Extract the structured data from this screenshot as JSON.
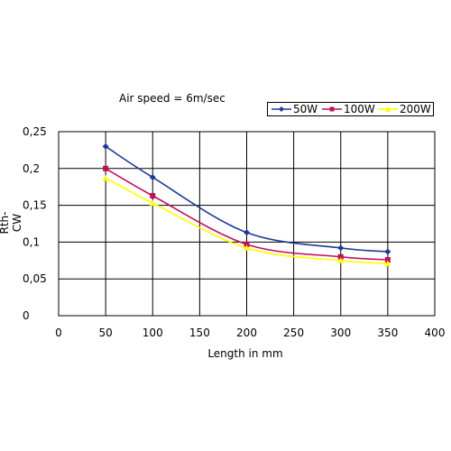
{
  "chart_data": {
    "type": "line",
    "title": "Air speed = 6m/sec",
    "xlabel": "Length in mm",
    "ylabel": "Rth-CW",
    "xlim": [
      0,
      400
    ],
    "ylim": [
      0,
      0.25
    ],
    "x_ticks": [
      "0",
      "50",
      "100",
      "150",
      "200",
      "250",
      "300",
      "350",
      "400"
    ],
    "y_ticks": [
      "0",
      "0,05",
      "0,1",
      "0,15",
      "0,2",
      "0,25"
    ],
    "grid": true,
    "legend_position": "top-right",
    "series": [
      {
        "name": "50W",
        "color": "#1f3a93",
        "marker": "diamond",
        "x": [
          50,
          100,
          200,
          300,
          350
        ],
        "y": [
          0.23,
          0.188,
          0.113,
          0.092,
          0.087
        ]
      },
      {
        "name": "100W",
        "color": "#c0105a",
        "marker": "square",
        "x": [
          50,
          100,
          200,
          300,
          350
        ],
        "y": [
          0.2,
          0.163,
          0.097,
          0.08,
          0.076
        ]
      },
      {
        "name": "200W",
        "color": "#ffff00",
        "marker": "triangle",
        "x": [
          50,
          100,
          200,
          300,
          350
        ],
        "y": [
          0.187,
          0.153,
          0.092,
          0.075,
          0.071
        ]
      }
    ]
  }
}
